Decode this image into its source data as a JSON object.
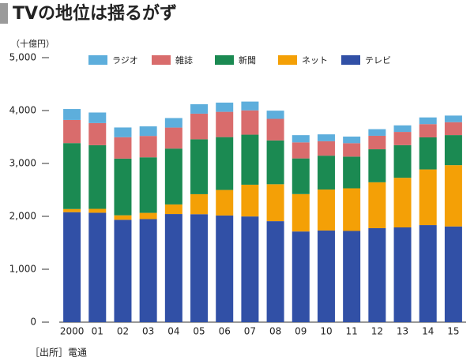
{
  "title": "TVの地位は揺るがず",
  "chart_data": {
    "type": "stacked-bar",
    "unit_label": "（十億円）",
    "source": "［出所］電通",
    "categories": [
      "2000",
      "01",
      "02",
      "03",
      "04",
      "05",
      "06",
      "07",
      "08",
      "09",
      "10",
      "11",
      "12",
      "13",
      "14",
      "15"
    ],
    "series": [
      {
        "name": "テレビ",
        "color": "#3150a6",
        "values": [
          2079,
          2068,
          1935,
          1948,
          2044,
          2041,
          2016,
          1998,
          1909,
          1714,
          1732,
          1724,
          1776,
          1791,
          1835,
          1809
        ]
      },
      {
        "name": "ネット",
        "color": "#f4a006",
        "values": [
          59,
          74,
          85,
          118,
          181,
          378,
          483,
          600,
          698,
          707,
          775,
          806,
          868,
          938,
          1052,
          1159
        ]
      },
      {
        "name": "新聞",
        "color": "#1b8a52",
        "values": [
          1247,
          1203,
          1071,
          1050,
          1056,
          1038,
          999,
          946,
          828,
          674,
          640,
          599,
          624,
          617,
          606,
          568
        ]
      },
      {
        "name": "雑誌",
        "color": "#d96c6c",
        "values": [
          437,
          418,
          405,
          404,
          397,
          484,
          478,
          459,
          408,
          303,
          273,
          254,
          255,
          250,
          250,
          244
        ]
      },
      {
        "name": "ラジオ",
        "color": "#5daedc",
        "values": [
          207,
          200,
          184,
          181,
          180,
          178,
          174,
          167,
          155,
          137,
          130,
          125,
          125,
          124,
          127,
          125
        ]
      }
    ],
    "ylim": [
      0,
      5000
    ],
    "yticks": [
      0,
      {
        "value": 1000,
        "label": "1,000"
      },
      {
        "value": 2000,
        "label": "2,000"
      },
      {
        "value": 3000,
        "label": "3,000"
      },
      {
        "value": 4000,
        "label": "4,000"
      },
      {
        "value": 5000,
        "label": "5,000"
      }
    ]
  }
}
